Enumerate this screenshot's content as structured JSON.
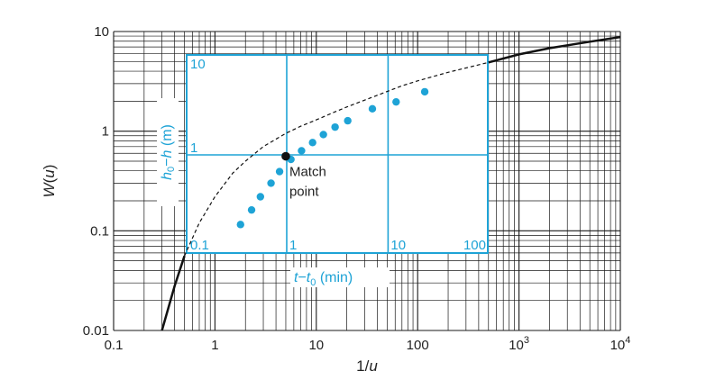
{
  "chart_data": {
    "type": "line",
    "x_scale": "log",
    "y_scale": "log",
    "xlim": [
      0.1,
      10000
    ],
    "ylim": [
      0.01,
      10
    ],
    "xlabel_parts": [
      "1/",
      "u"
    ],
    "ylabel_parts": [
      "W",
      "(",
      "u",
      ")"
    ],
    "x_ticks": [
      "0.1",
      "1",
      "10",
      "100",
      "10",
      "10"
    ],
    "x_tick_exponents": [
      "",
      "",
      "",
      "",
      "3",
      "4"
    ],
    "y_ticks": [
      "10",
      "1",
      "0.1",
      "0.01"
    ],
    "grid": true,
    "type_curve": {
      "x": [
        0.3,
        0.4,
        0.5,
        0.7,
        1,
        1.5,
        2,
        3,
        5,
        7,
        10,
        15,
        20,
        30,
        50,
        70,
        100,
        200,
        500,
        1000,
        2000,
        5000,
        10000
      ],
      "y": [
        0.01,
        0.028,
        0.056,
        0.12,
        0.22,
        0.38,
        0.5,
        0.7,
        0.95,
        1.12,
        1.3,
        1.55,
        1.75,
        2.05,
        2.5,
        2.85,
        3.2,
        3.9,
        4.9,
        5.9,
        6.8,
        7.9,
        8.8
      ]
    },
    "overlay": {
      "x_ticks": [
        "0.1",
        "1",
        "10",
        "100"
      ],
      "y_ticks": [
        "10",
        "1"
      ],
      "xlabel": {
        "parts": [
          "t",
          "−",
          "t",
          "0",
          " (min)"
        ]
      },
      "ylabel": {
        "parts": [
          "h",
          "0",
          "−",
          "h",
          " (m)"
        ]
      },
      "observations": {
        "t_minus_t0": [
          0.35,
          0.45,
          0.55,
          0.7,
          0.85,
          1.1,
          1.4,
          1.8,
          2.3,
          3.0,
          4.0,
          7.0,
          12,
          23
        ],
        "h0_minus_h": [
          0.2,
          0.28,
          0.38,
          0.52,
          0.68,
          0.9,
          1.1,
          1.33,
          1.6,
          1.9,
          2.2,
          2.9,
          3.4,
          4.3
        ]
      }
    },
    "match_point": {
      "label_line1": "Match",
      "label_line2": "point",
      "x": 5,
      "y": 0.56
    }
  }
}
